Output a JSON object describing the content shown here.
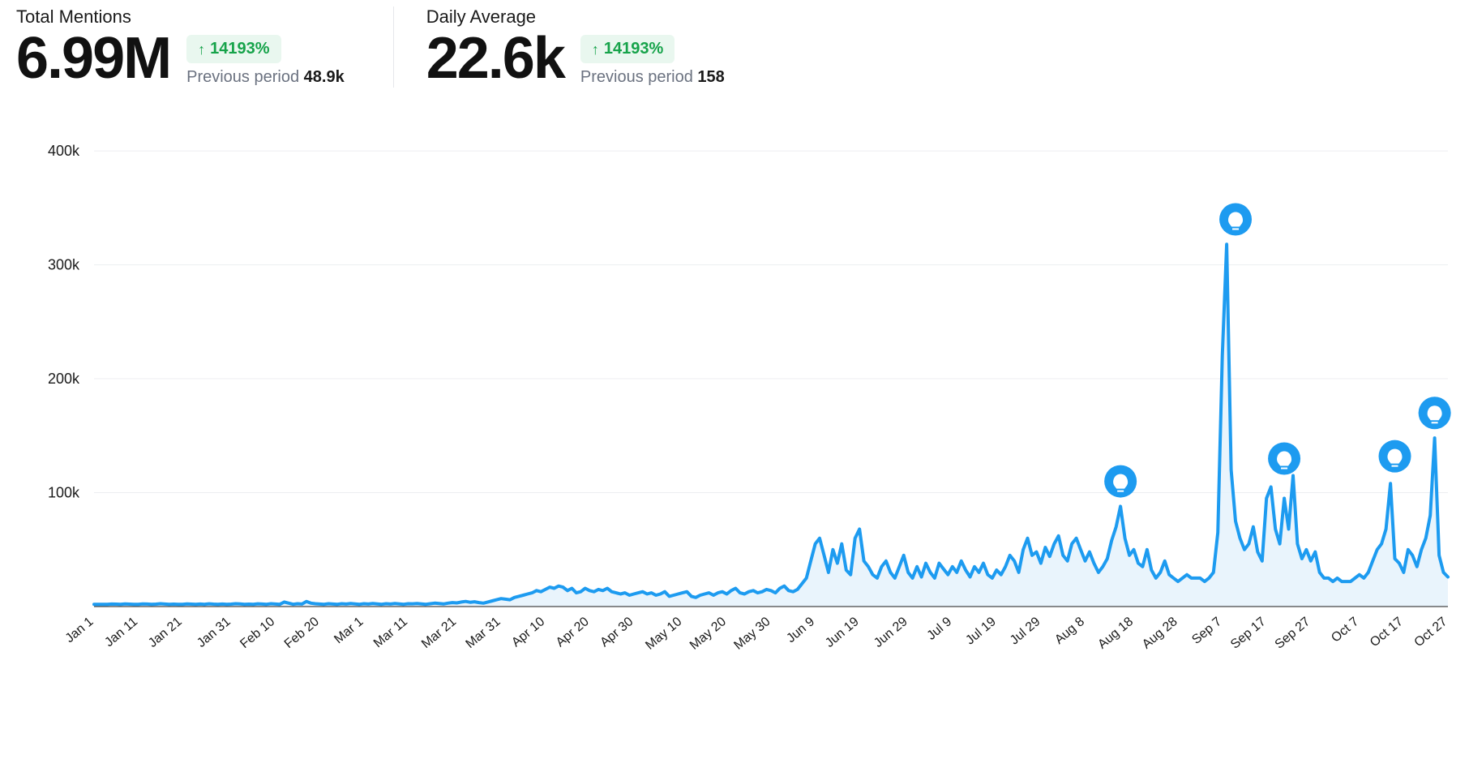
{
  "metrics": {
    "total_mentions": {
      "title": "Total Mentions",
      "value": "6.99M",
      "change_pct": "14193%",
      "change_direction": "up",
      "previous_label": "Previous period",
      "previous_value": "48.9k"
    },
    "daily_average": {
      "title": "Daily Average",
      "value": "22.6k",
      "change_pct": "14193%",
      "change_direction": "up",
      "previous_label": "Previous period",
      "previous_value": "158"
    }
  },
  "chart": {
    "type": "area-line",
    "background_color": "#ffffff",
    "grid_color": "#eceef0",
    "baseline_color": "#1a1a1a",
    "line_color": "#1d9bf0",
    "line_width": 4,
    "area_fill_color": "#e3f1fb",
    "area_fill_opacity": 0.8,
    "marker_color": "#1d9bf0",
    "marker_icon_color": "#ffffff",
    "label_fontsize": 18,
    "xlabel_fontsize": 16,
    "ylim": [
      0,
      420000
    ],
    "y_ticks": [
      {
        "v": 100000,
        "label": "100k"
      },
      {
        "v": 200000,
        "label": "200k"
      },
      {
        "v": 300000,
        "label": "300k"
      },
      {
        "v": 400000,
        "label": "400k"
      }
    ],
    "x_ticks": [
      "Jan 1",
      "Jan 11",
      "Jan 21",
      "Jan 31",
      "Feb 10",
      "Feb 20",
      "Mar 1",
      "Mar 11",
      "Mar 21",
      "Mar 31",
      "Apr 10",
      "Apr 20",
      "Apr 30",
      "May 10",
      "May 20",
      "May 30",
      "Jun 9",
      "Jun 19",
      "Jun 29",
      "Jul 9",
      "Jul 19",
      "Jul 29",
      "Aug 8",
      "Aug 18",
      "Aug 28",
      "Sep 7",
      "Sep 17",
      "Sep 27",
      "Oct 7",
      "Oct 17",
      "Oct 27"
    ],
    "x_domain_indices": [
      0,
      306
    ],
    "insight_markers": [
      {
        "i": 232,
        "y_offset": 90000
      },
      {
        "i": 258,
        "y_offset": 320000
      },
      {
        "i": 269,
        "y_offset": 110000
      },
      {
        "i": 294,
        "y_offset": 112000
      },
      {
        "i": 303,
        "y_offset": 150000
      }
    ],
    "values": [
      2000,
      2000,
      2000,
      2000,
      2200,
      2100,
      2000,
      2300,
      2100,
      2000,
      2000,
      2300,
      2200,
      2000,
      2100,
      2500,
      2200,
      2000,
      2100,
      2000,
      2000,
      2300,
      2100,
      2000,
      2200,
      2000,
      2400,
      2100,
      2000,
      2200,
      2000,
      2100,
      2500,
      2300,
      2000,
      2100,
      2000,
      2400,
      2200,
      2000,
      2500,
      2200,
      2000,
      4000,
      3000,
      2000,
      2500,
      2200,
      4500,
      3000,
      2500,
      2200,
      2000,
      2500,
      2200,
      2000,
      2500,
      2200,
      2600,
      2300,
      2000,
      2500,
      2200,
      2600,
      2300,
      2000,
      2500,
      2200,
      2600,
      2300,
      2000,
      2500,
      2400,
      2600,
      2300,
      2000,
      2500,
      3000,
      2600,
      2300,
      3000,
      3500,
      3200,
      4000,
      4500,
      3800,
      4200,
      3500,
      3000,
      4000,
      5000,
      6000,
      7000,
      6500,
      6000,
      8000,
      9000,
      10000,
      11000,
      12000,
      14000,
      13000,
      15000,
      17000,
      16000,
      18000,
      17000,
      14000,
      16000,
      12000,
      13000,
      16000,
      14000,
      13000,
      15000,
      14000,
      16000,
      13000,
      12000,
      11000,
      12000,
      10000,
      11000,
      12000,
      13000,
      11000,
      12000,
      10000,
      11000,
      13000,
      9000,
      10000,
      11000,
      12000,
      13000,
      9000,
      8000,
      10000,
      11000,
      12000,
      10000,
      12000,
      13000,
      11000,
      14000,
      16000,
      12000,
      11000,
      13000,
      14000,
      12000,
      13000,
      15000,
      14000,
      12000,
      16000,
      18000,
      14000,
      13000,
      15000,
      20000,
      25000,
      40000,
      55000,
      60000,
      45000,
      30000,
      50000,
      38000,
      55000,
      32000,
      28000,
      60000,
      68000,
      40000,
      35000,
      28000,
      25000,
      35000,
      40000,
      30000,
      25000,
      35000,
      45000,
      30000,
      25000,
      35000,
      26000,
      38000,
      30000,
      25000,
      38000,
      33000,
      28000,
      35000,
      30000,
      40000,
      32000,
      26000,
      35000,
      30000,
      38000,
      28000,
      25000,
      32000,
      28000,
      35000,
      45000,
      40000,
      30000,
      50000,
      60000,
      45000,
      48000,
      38000,
      52000,
      44000,
      55000,
      62000,
      45000,
      40000,
      55000,
      60000,
      50000,
      40000,
      48000,
      38000,
      30000,
      35000,
      42000,
      58000,
      70000,
      88000,
      60000,
      45000,
      50000,
      38000,
      35000,
      50000,
      32000,
      25000,
      30000,
      40000,
      28000,
      25000,
      22000,
      25000,
      28000,
      25000,
      25000,
      25000,
      22000,
      25000,
      30000,
      65000,
      220000,
      318000,
      120000,
      75000,
      60000,
      50000,
      55000,
      70000,
      48000,
      40000,
      95000,
      105000,
      68000,
      55000,
      95000,
      68000,
      115000,
      55000,
      42000,
      50000,
      40000,
      48000,
      30000,
      25000,
      25000,
      22000,
      25000,
      22000,
      22000,
      22000,
      25000,
      28000,
      25000,
      30000,
      40000,
      50000,
      55000,
      68000,
      108000,
      42000,
      38000,
      30000,
      50000,
      45000,
      35000,
      50000,
      60000,
      80000,
      148000,
      45000,
      30000,
      26000
    ]
  }
}
